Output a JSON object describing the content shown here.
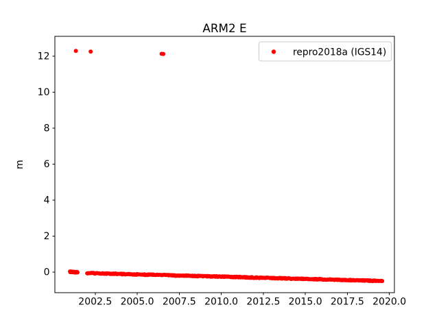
{
  "chart_data": {
    "type": "scatter",
    "title": "ARM2 E",
    "xlabel": "",
    "ylabel": "m",
    "xlim": [
      2000.1,
      2020.3
    ],
    "ylim": [
      -1.15,
      13.1
    ],
    "xticks": [
      2002.5,
      2005.0,
      2007.5,
      2010.0,
      2012.5,
      2015.0,
      2017.5,
      2020.0
    ],
    "xtick_labels": [
      "2002.5",
      "2005.0",
      "2007.5",
      "2010.0",
      "2012.5",
      "2015.0",
      "2017.5",
      "2020.0"
    ],
    "yticks": [
      0,
      2,
      4,
      6,
      8,
      10,
      12
    ],
    "ytick_labels": [
      "0",
      "2",
      "4",
      "6",
      "8",
      "10",
      "12"
    ],
    "grid": false,
    "marker_color": "#ff0000",
    "legend": {
      "position": "upper right",
      "entries": [
        {
          "label": "repro2018a (IGS14)",
          "marker": "point",
          "color": "#ff0000"
        }
      ]
    },
    "series": [
      {
        "name": "repro2018a (IGS14)",
        "color": "#ff0000",
        "marker": "point",
        "marker_diameter_px": 6,
        "outlier_points": [
          [
            2001.35,
            12.29
          ],
          [
            2002.23,
            12.25
          ],
          [
            2006.45,
            12.13
          ],
          [
            2006.55,
            12.12
          ]
        ],
        "dense_band_segments": [
          {
            "x_start": 2001.0,
            "x_end": 2001.45,
            "y_start": 0.01,
            "y_end": -0.02,
            "approx_point_count": 70
          },
          {
            "x_start": 2002.0,
            "x_end": 2019.6,
            "y_start": -0.06,
            "y_end": -0.5,
            "approx_point_count": 650
          }
        ],
        "trend_m_per_year": -0.027
      }
    ]
  }
}
